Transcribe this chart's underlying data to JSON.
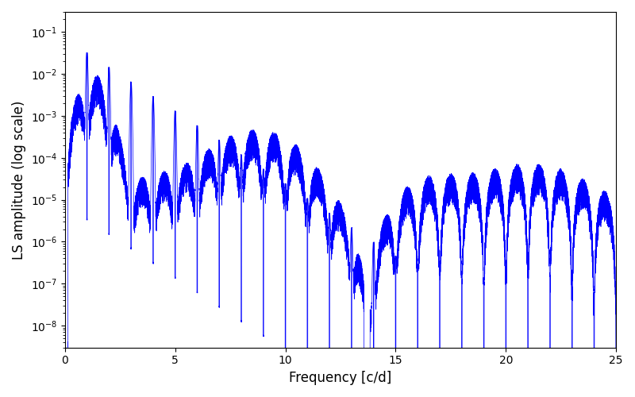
{
  "xlabel": "Frequency [c/d]",
  "ylabel": "LS amplitude (log scale)",
  "xlim": [
    0,
    25
  ],
  "ylim": [
    3e-09,
    0.3
  ],
  "line_color": "#0000ff",
  "line_width": 0.5,
  "background_color": "#ffffff",
  "figsize": [
    8.0,
    5.0
  ],
  "dpi": 100,
  "freq_max": 25.0,
  "n_points": 15000,
  "seed": 12345
}
